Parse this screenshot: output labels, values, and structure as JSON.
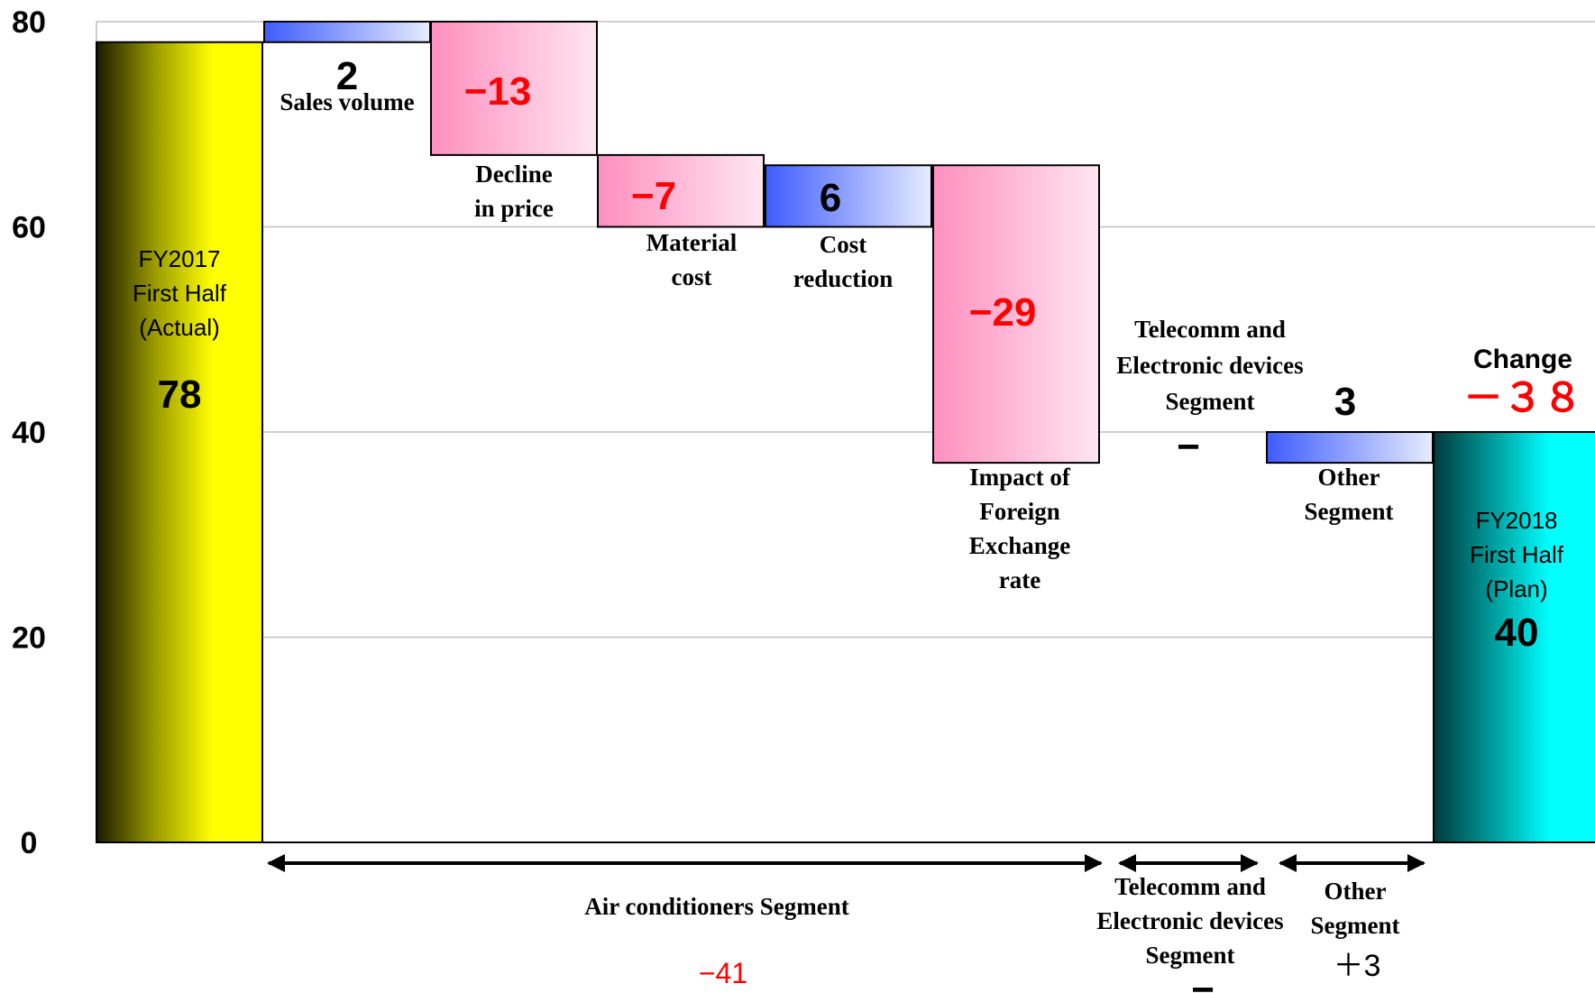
{
  "chart_data": {
    "type": "waterfall",
    "ylim": [
      0,
      80
    ],
    "yticks": [
      "0",
      "20",
      "40",
      "60",
      "80"
    ],
    "grid": true,
    "start": {
      "line1": "FY2017",
      "line2": "First Half",
      "line3": "(Actual)",
      "value": 78,
      "value_label": "78",
      "color_top": "#ffff00",
      "color_dark": "#1a1a00"
    },
    "steps": [
      {
        "label_lines": [
          "Sales volume"
        ],
        "delta": 2,
        "value_label": "2",
        "kind": "increase"
      },
      {
        "label_lines": [
          "Decline",
          "in price"
        ],
        "delta": -13,
        "value_label": "−13",
        "kind": "decrease"
      },
      {
        "label_lines": [
          "Material",
          "cost"
        ],
        "delta": -7,
        "value_label": "−7",
        "kind": "decrease"
      },
      {
        "label_lines": [
          "Cost",
          "reduction"
        ],
        "delta": 6,
        "value_label": "6",
        "kind": "increase"
      },
      {
        "label_lines": [
          "Impact of",
          "Foreign",
          "Exchange",
          "rate"
        ],
        "delta": -29,
        "value_label": "−29",
        "kind": "decrease"
      },
      {
        "label_lines": [
          "Telecomm and",
          "Electronic devices",
          "Segment"
        ],
        "delta": 0,
        "value_label": "−",
        "kind": "none"
      },
      {
        "label_lines": [
          "Other",
          "Segment"
        ],
        "delta": 3,
        "value_label": "3",
        "kind": "increase"
      }
    ],
    "end": {
      "line1": "FY2018",
      "line2": "First Half",
      "line3": "(Plan)",
      "value": 40,
      "value_label": "40",
      "color": "#00ffff"
    },
    "change": {
      "label": "Change",
      "value": "－３８"
    },
    "segments": [
      {
        "name_lines": [
          "Air conditioners Segment"
        ],
        "value": "−41"
      },
      {
        "name_lines": [
          "Telecomm and",
          "Electronic devices",
          "Segment"
        ],
        "value": "−"
      },
      {
        "name_lines": [
          "Other",
          "Segment"
        ],
        "value": "＋3"
      }
    ],
    "colors": {
      "increase": "#6f8dff",
      "decrease": "#ffa6c9",
      "grid": "#bfbfbf"
    }
  }
}
